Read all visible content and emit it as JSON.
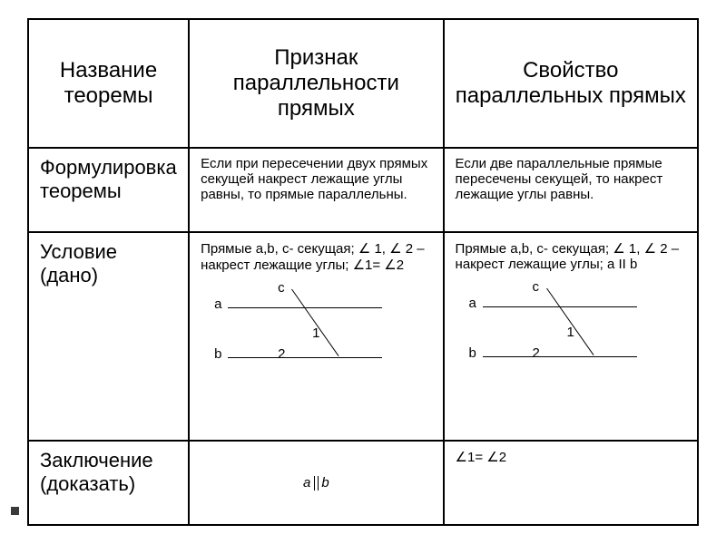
{
  "table": {
    "headers": {
      "col1": "Название теоремы",
      "col2": "Признак параллельности прямых",
      "col3": "Свойство параллельных прямых"
    },
    "rows": {
      "formulation": {
        "label": "Формулировка теоремы",
        "col2": "Если при пересечении двух прямых секущей накрест лежащие углы равны, то прямые параллельны.",
        "col3": "Если две параллельные прямые пересечены секущей, то накрест лежащие углы равны."
      },
      "condition": {
        "label": "Условие (дано)",
        "col2_text": "Прямые a,b, c- секущая; ∠ 1, ∠ 2 –накрест лежащие углы; ∠1= ∠2",
        "col3_text": "Прямые a,b, c- секущая; ∠ 1, ∠ 2 –накрест лежащие углы; a II b",
        "diagram": {
          "label_a": "a",
          "label_b": "b",
          "label_c": "c",
          "label_1": "1",
          "label_2": "2"
        }
      },
      "conclusion": {
        "label": "Заключение (доказать)",
        "col2_formula_a": "a",
        "col2_formula_b": "b",
        "col3": "∠1= ∠2"
      }
    },
    "styling": {
      "border_color": "#000000",
      "border_width": 2,
      "background_color": "#ffffff",
      "header_fontsize": 24,
      "rowlabel_fontsize": 22,
      "content_fontsize": 15,
      "font_family": "Arial"
    }
  }
}
